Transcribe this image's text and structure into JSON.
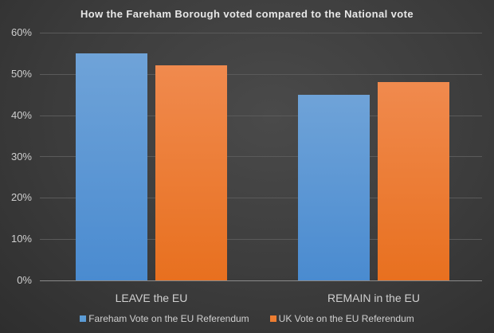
{
  "chart_data": {
    "type": "bar",
    "title": "How the Fareham Borough voted compared to the National vote",
    "categories": [
      "LEAVE the EU",
      "REMAIN in the EU"
    ],
    "series": [
      {
        "name": "Fareham Vote on the EU Referendum",
        "values": [
          55,
          45
        ],
        "color": "#5b9bd5"
      },
      {
        "name": "UK Vote on the EU Referendum",
        "values": [
          52,
          48
        ],
        "color": "#ed7d31"
      }
    ],
    "xlabel": "",
    "ylabel": "",
    "ylim": [
      0,
      60
    ],
    "yticks": [
      "0%",
      "10%",
      "20%",
      "30%",
      "40%",
      "50%",
      "60%"
    ],
    "grid": true,
    "legend_position": "bottom"
  }
}
